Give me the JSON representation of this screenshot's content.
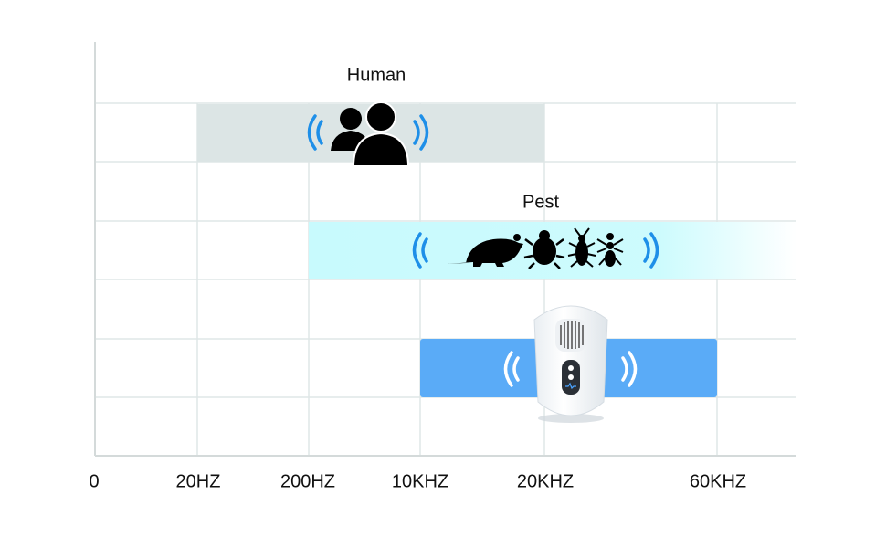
{
  "axis_labels": [
    "0",
    "20HZ",
    "200HZ",
    "10KHZ",
    "20KHZ",
    "60KHZ"
  ],
  "bands": [
    {
      "label": "Human"
    },
    {
      "label": "Pest"
    }
  ]
}
